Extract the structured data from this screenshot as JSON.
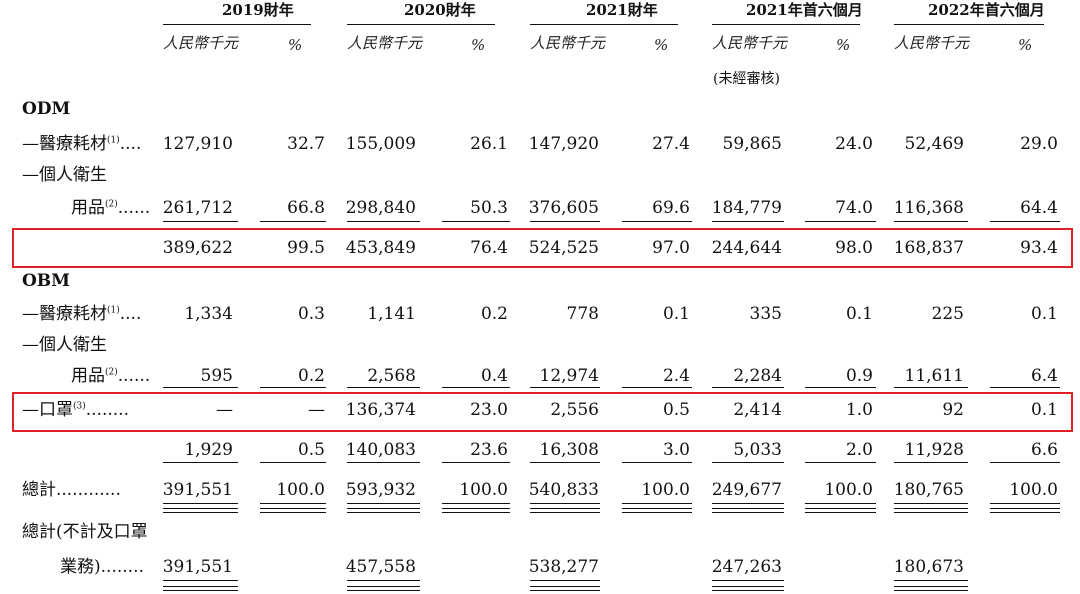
{
  "columns": [
    {
      "title": "2019財年",
      "unit": "人民幣千元",
      "pct": "%",
      "note": ""
    },
    {
      "title": "2020財年",
      "unit": "人民幣千元",
      "pct": "%",
      "note": ""
    },
    {
      "title": "2021財年",
      "unit": "人民幣千元",
      "pct": "%",
      "note": ""
    },
    {
      "title": "2021年首六個月",
      "unit": "人民幣千元",
      "pct": "%",
      "note": "(未經審核)"
    },
    {
      "title": "2022年首六個月",
      "unit": "人民幣千元",
      "pct": "%",
      "note": ""
    }
  ],
  "sections": {
    "odm": "ODM",
    "obm": "OBM"
  },
  "rows": [
    {
      "id": "odm-medical",
      "label": "—醫療耗材",
      "sup": "(1)",
      "dots": "....",
      "values": [
        "127,910",
        "32.7",
        "155,009",
        "26.1",
        "147,920",
        "27.4",
        "59,865",
        "24.0",
        "52,469",
        "29.0"
      ]
    },
    {
      "id": "odm-hygiene",
      "label1": "—個人衛生",
      "label": "用品",
      "sup": "(2)",
      "dots": "......",
      "values": [
        "261,712",
        "66.8",
        "298,840",
        "50.3",
        "376,605",
        "69.6",
        "184,779",
        "74.0",
        "116,368",
        "64.4"
      ]
    },
    {
      "id": "odm-subtotal",
      "label": "",
      "values": [
        "389,622",
        "99.5",
        "453,849",
        "76.4",
        "524,525",
        "97.0",
        "244,644",
        "98.0",
        "168,837",
        "93.4"
      ]
    },
    {
      "id": "obm-medical",
      "label": "—醫療耗材",
      "sup": "(1)",
      "dots": "....",
      "values": [
        "1,334",
        "0.3",
        "1,141",
        "0.2",
        "778",
        "0.1",
        "335",
        "0.1",
        "225",
        "0.1"
      ]
    },
    {
      "id": "obm-hygiene",
      "label1": "—個人衛生",
      "label": "用品",
      "sup": "(2)",
      "dots": "......",
      "values": [
        "595",
        "0.2",
        "2,568",
        "0.4",
        "12,974",
        "2.4",
        "2,284",
        "0.9",
        "11,611",
        "6.4"
      ]
    },
    {
      "id": "obm-mask",
      "label": "—口罩",
      "sup": "(3)",
      "dots": "........",
      "values": [
        "—",
        "—",
        "136,374",
        "23.0",
        "2,556",
        "0.5",
        "2,414",
        "1.0",
        "92",
        "0.1"
      ]
    },
    {
      "id": "obm-subtotal",
      "label": "",
      "values": [
        "1,929",
        "0.5",
        "140,083",
        "23.6",
        "16,308",
        "3.0",
        "5,033",
        "2.0",
        "11,928",
        "6.6"
      ]
    },
    {
      "id": "total",
      "label": "總計",
      "dots": "............",
      "values": [
        "391,551",
        "100.0",
        "593,932",
        "100.0",
        "540,833",
        "100.0",
        "249,677",
        "100.0",
        "180,765",
        "100.0"
      ]
    },
    {
      "id": "total-excl-mask",
      "label1": "總計(不計及口罩",
      "label": "業務)",
      "dots": "........",
      "values": [
        "391,551",
        "",
        "457,558",
        "",
        "538,277",
        "",
        "247,263",
        "",
        "180,673",
        ""
      ]
    }
  ],
  "colors": {
    "highlight_box": "#e21f26"
  }
}
